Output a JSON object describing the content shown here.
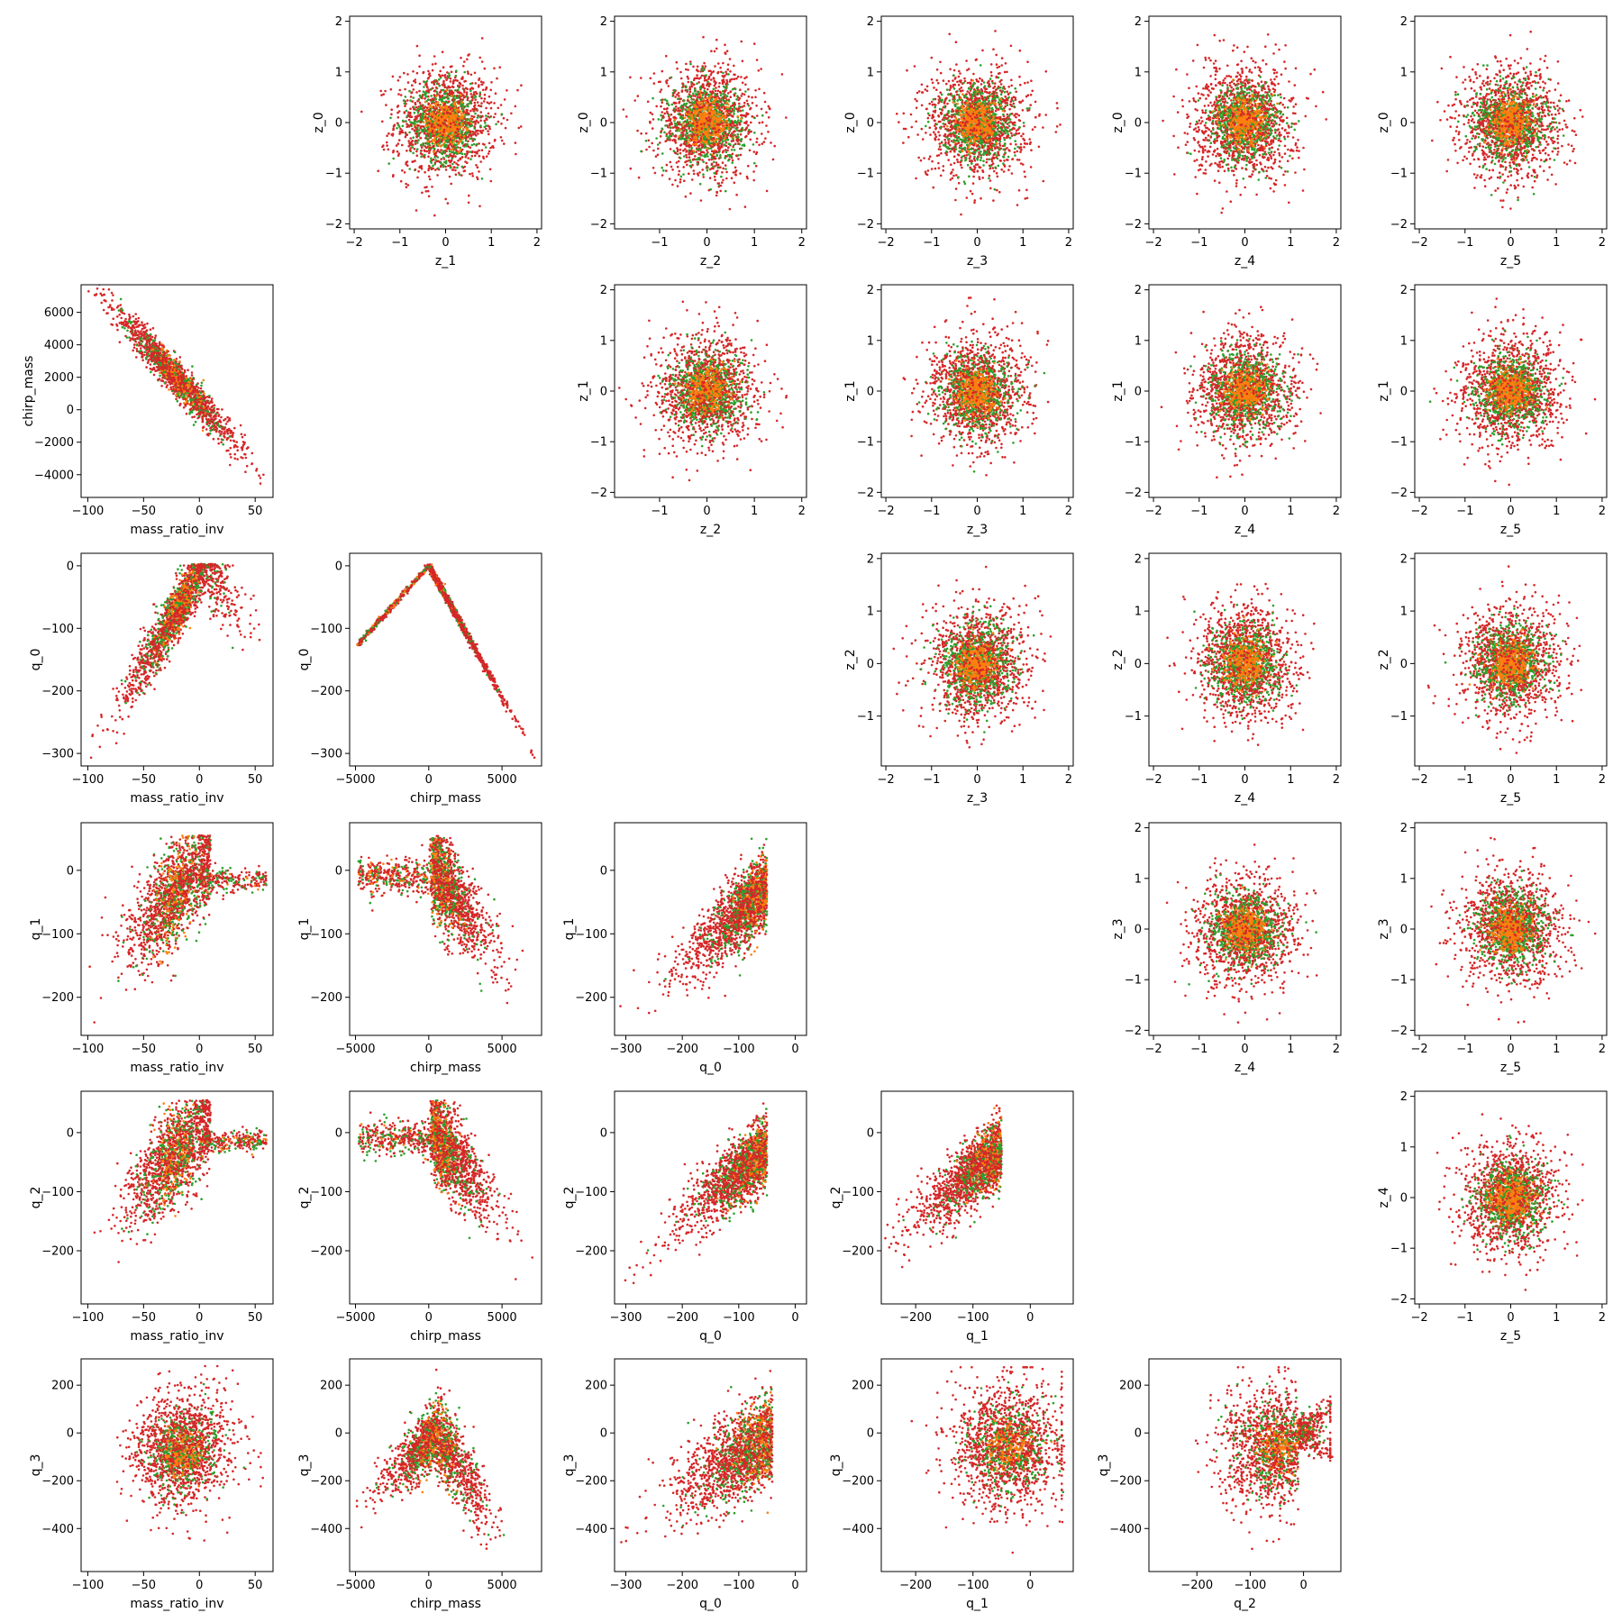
{
  "chart_data": {
    "type": "scatter",
    "layout": "upper-triangle z pairs, lower-triangle parameter/q pairs, empty diagonal",
    "grid": false,
    "legend": "none",
    "series_colors": {
      "red": "#d62728",
      "green": "#2ca02c",
      "orange": "#ff7f0e"
    },
    "variables": {
      "mass_ratio_inv": {
        "ticks": [
          -100,
          -50,
          0,
          50
        ],
        "range": [
          -106,
          66
        ]
      },
      "chirp_mass": {
        "ticks": [
          -5000,
          0,
          5000
        ],
        "range": [
          -5400,
          7700
        ]
      },
      "q_0": {
        "ticks": [
          -300,
          -200,
          -100,
          0
        ],
        "range": [
          -320,
          20
        ]
      },
      "q_1": {
        "ticks": [
          -200,
          -100,
          0
        ],
        "range": [
          -260,
          75
        ]
      },
      "q_2": {
        "ticks": [
          -200,
          -100,
          0
        ],
        "range": [
          -290,
          70
        ]
      },
      "q_3": {
        "ticks": [
          -400,
          -200,
          0,
          200
        ],
        "range": [
          -580,
          310
        ]
      },
      "z": {
        "ticks": [
          -2,
          -1,
          0,
          1,
          2
        ],
        "range": [
          -2.1,
          2.1
        ]
      },
      "z_2x": {
        "ticks": [
          -1,
          0,
          1,
          2
        ],
        "range": [
          -1.95,
          2.1
        ]
      },
      "z_2y": {
        "ticks": [
          -1,
          0,
          1,
          2
        ],
        "range": [
          -1.95,
          2.1
        ]
      },
      "z_4y": {
        "ticks": [
          -2,
          -1,
          0,
          1,
          2
        ],
        "range": [
          -2.1,
          2.1
        ]
      }
    },
    "subplots": [
      {
        "row": 0,
        "col": 1,
        "xlabel": "z_1",
        "ylabel": "z_0",
        "x": "z",
        "y": "z",
        "shape": "gauss"
      },
      {
        "row": 0,
        "col": 2,
        "xlabel": "z_2",
        "ylabel": "z_0",
        "x": "z_2x",
        "y": "z",
        "shape": "gauss"
      },
      {
        "row": 0,
        "col": 3,
        "xlabel": "z_3",
        "ylabel": "z_0",
        "x": "z",
        "y": "z",
        "shape": "gauss"
      },
      {
        "row": 0,
        "col": 4,
        "xlabel": "z_4",
        "ylabel": "z_0",
        "x": "z",
        "y": "z",
        "shape": "gauss"
      },
      {
        "row": 0,
        "col": 5,
        "xlabel": "z_5",
        "ylabel": "z_0",
        "x": "z",
        "y": "z",
        "shape": "gauss"
      },
      {
        "row": 1,
        "col": 0,
        "xlabel": "mass_ratio_inv",
        "ylabel": "chirp_mass",
        "x": "mass_ratio_inv",
        "y": "chirp_mass",
        "shape": "neg_linear",
        "yrange": [
          -5400,
          7700
        ],
        "yticks": [
          -4000,
          -2000,
          0,
          2000,
          4000,
          6000
        ]
      },
      {
        "row": 1,
        "col": 2,
        "xlabel": "z_2",
        "ylabel": "z_1",
        "x": "z_2x",
        "y": "z",
        "shape": "gauss"
      },
      {
        "row": 1,
        "col": 3,
        "xlabel": "z_3",
        "ylabel": "z_1",
        "x": "z",
        "y": "z",
        "shape": "gauss"
      },
      {
        "row": 1,
        "col": 4,
        "xlabel": "z_4",
        "ylabel": "z_1",
        "x": "z",
        "y": "z",
        "shape": "gauss"
      },
      {
        "row": 1,
        "col": 5,
        "xlabel": "z_5",
        "ylabel": "z_1",
        "x": "z",
        "y": "z",
        "shape": "gauss"
      },
      {
        "row": 2,
        "col": 0,
        "xlabel": "mass_ratio_inv",
        "ylabel": "q_0",
        "x": "mass_ratio_inv",
        "y": "q_0",
        "shape": "arch"
      },
      {
        "row": 2,
        "col": 1,
        "xlabel": "chirp_mass",
        "ylabel": "q_0",
        "x": "chirp_mass",
        "y": "q_0",
        "shape": "vee"
      },
      {
        "row": 2,
        "col": 3,
        "xlabel": "z_3",
        "ylabel": "z_2",
        "x": "z",
        "y": "z_2y",
        "shape": "gauss"
      },
      {
        "row": 2,
        "col": 4,
        "xlabel": "z_4",
        "ylabel": "z_2",
        "x": "z",
        "y": "z_2y",
        "shape": "gauss"
      },
      {
        "row": 2,
        "col": 5,
        "xlabel": "z_5",
        "ylabel": "z_2",
        "x": "z",
        "y": "z_2y",
        "shape": "gauss"
      },
      {
        "row": 3,
        "col": 0,
        "xlabel": "mass_ratio_inv",
        "ylabel": "q_1",
        "x": "mass_ratio_inv",
        "y": "q_1",
        "shape": "pos_linear_tail"
      },
      {
        "row": 3,
        "col": 1,
        "xlabel": "chirp_mass",
        "ylabel": "q_1",
        "x": "chirp_mass",
        "y": "q_1",
        "shape": "neg_hinge"
      },
      {
        "row": 3,
        "col": 2,
        "xlabel": "q_0",
        "ylabel": "q_1",
        "x": "q_0",
        "y": "q_1",
        "shape": "pos_linear"
      },
      {
        "row": 3,
        "col": 4,
        "xlabel": "z_4",
        "ylabel": "z_3",
        "x": "z",
        "y": "z",
        "shape": "gauss"
      },
      {
        "row": 3,
        "col": 5,
        "xlabel": "z_5",
        "ylabel": "z_3",
        "x": "z",
        "y": "z",
        "shape": "gauss"
      },
      {
        "row": 4,
        "col": 0,
        "xlabel": "mass_ratio_inv",
        "ylabel": "q_2",
        "x": "mass_ratio_inv",
        "y": "q_2",
        "shape": "pos_linear_tail"
      },
      {
        "row": 4,
        "col": 1,
        "xlabel": "chirp_mass",
        "ylabel": "q_2",
        "x": "chirp_mass",
        "y": "q_2",
        "shape": "neg_hinge"
      },
      {
        "row": 4,
        "col": 2,
        "xlabel": "q_0",
        "ylabel": "q_2",
        "x": "q_0",
        "y": "q_2",
        "shape": "pos_linear"
      },
      {
        "row": 4,
        "col": 3,
        "xlabel": "q_1",
        "ylabel": "q_2",
        "x": "q_1",
        "y": "q_2",
        "shape": "pos_linear"
      },
      {
        "row": 4,
        "col": 5,
        "xlabel": "z_5",
        "ylabel": "z_4",
        "x": "z",
        "y": "z_4y",
        "shape": "gauss"
      },
      {
        "row": 5,
        "col": 0,
        "xlabel": "mass_ratio_inv",
        "ylabel": "q_3",
        "x": "mass_ratio_inv",
        "y": "q_3",
        "shape": "blob"
      },
      {
        "row": 5,
        "col": 1,
        "xlabel": "chirp_mass",
        "ylabel": "q_3",
        "x": "chirp_mass",
        "y": "q_3",
        "shape": "tent"
      },
      {
        "row": 5,
        "col": 2,
        "xlabel": "q_0",
        "ylabel": "q_3",
        "x": "q_0",
        "y": "q_3",
        "shape": "pos_wide"
      },
      {
        "row": 5,
        "col": 3,
        "xlabel": "q_1",
        "ylabel": "q_3",
        "x": "q_1",
        "y": "q_3",
        "shape": "blob_right"
      },
      {
        "row": 5,
        "col": 4,
        "xlabel": "q_2",
        "ylabel": "q_3",
        "x": "q_2",
        "y": "q_3",
        "shape": "fan"
      }
    ]
  }
}
